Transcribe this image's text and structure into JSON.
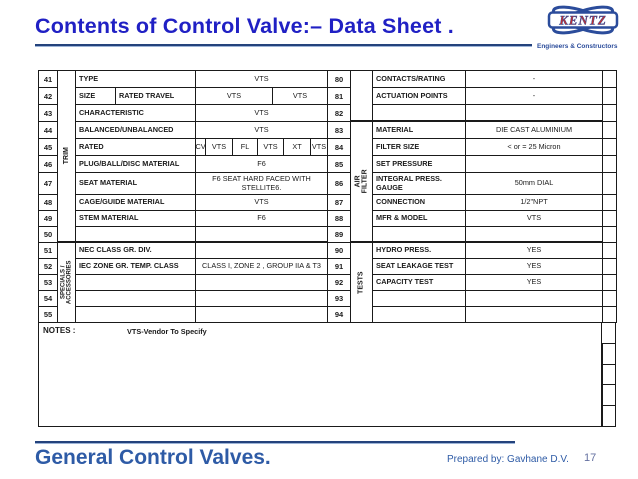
{
  "title": "Contents of Control Valve:– Data Sheet .",
  "logo": {
    "name": "KENTZ",
    "tagline": "Engineers & Constructors"
  },
  "colors": {
    "title_blue": "#2020c4",
    "rule_navy": "#24427c",
    "footer_blue": "#2e5ba6",
    "logo_blue": "#2b4c9b",
    "logo_red": "#c42f2f"
  },
  "left_table": {
    "sections": [
      {
        "label": "TRIM",
        "rows": "41-50"
      },
      {
        "label": "SPECIALS /\nACCESSORIES",
        "rows": "51-55"
      }
    ],
    "rows": [
      {
        "num": "41",
        "label": "TYPE",
        "value": "VTS"
      },
      {
        "num": "42",
        "labels": [
          "SIZE",
          "RATED TRAVEL"
        ],
        "values": [
          "VTS",
          "VTS"
        ]
      },
      {
        "num": "43",
        "label": "CHARACTERISTIC",
        "value": "VTS"
      },
      {
        "num": "44",
        "label": "BALANCED/UNBALANCED",
        "value": "VTS"
      },
      {
        "num": "45",
        "label": "RATED",
        "values": [
          "CV",
          "VTS",
          "FL",
          "VTS",
          "XT",
          "VTS"
        ]
      },
      {
        "num": "46",
        "label": "PLUG/BALL/DISC MATERIAL",
        "value": "F6"
      },
      {
        "num": "47",
        "label": "SEAT MATERIAL",
        "value": "F6 SEAT HARD FACED WITH\nSTELLITE6."
      },
      {
        "num": "48",
        "label": "CAGE/GUIDE MATERIAL",
        "value": "VTS"
      },
      {
        "num": "49",
        "label": "STEM MATERIAL",
        "value": "F6"
      },
      {
        "num": "50",
        "label": "",
        "value": ""
      },
      {
        "num": "51",
        "label": "NEC CLASS GR. DIV.",
        "value": ""
      },
      {
        "num": "52",
        "label": "IEC ZONE  GR. TEMP. CLASS",
        "value": "CLASS I, ZONE 2 , GROUP IIA & T3"
      },
      {
        "num": "53",
        "label": "",
        "value": ""
      },
      {
        "num": "54",
        "label": "",
        "value": ""
      },
      {
        "num": "55",
        "label": "",
        "value": ""
      }
    ]
  },
  "right_table": {
    "sections": [
      {
        "label": "",
        "rows": "80-82"
      },
      {
        "label": "AIR FILTER",
        "rows": "83-89"
      },
      {
        "label": "TESTS",
        "rows": "90-94"
      }
    ],
    "rows": [
      {
        "num": "80",
        "label": "CONTACTS/RATING",
        "value": "-"
      },
      {
        "num": "81",
        "label": "ACTUATION POINTS",
        "value": "-"
      },
      {
        "num": "82",
        "label": "",
        "value": ""
      },
      {
        "num": "83",
        "label": "MATERIAL",
        "value": "DIE CAST ALUMINIUM"
      },
      {
        "num": "84",
        "label": "FILTER SIZE",
        "value": "< or = 25 Micron"
      },
      {
        "num": "85",
        "label": "SET PRESSURE",
        "value": ""
      },
      {
        "num": "86",
        "label": "INTEGRAL PRESS.\nGAUGE",
        "value": "50mm DIAL"
      },
      {
        "num": "87",
        "label": "CONNECTION",
        "value": "1/2\"NPT"
      },
      {
        "num": "88",
        "label": "MFR & MODEL",
        "value": "VTS"
      },
      {
        "num": "89",
        "label": "",
        "value": ""
      },
      {
        "num": "90",
        "label": "HYDRO PRESS.",
        "value": "YES"
      },
      {
        "num": "91",
        "label": "SEAT LEAKAGE TEST",
        "value": "YES"
      },
      {
        "num": "92",
        "label": "CAPACITY TEST",
        "value": "YES"
      },
      {
        "num": "93",
        "label": "",
        "value": ""
      },
      {
        "num": "94",
        "label": "",
        "value": ""
      }
    ]
  },
  "notes": {
    "label": "NOTES :",
    "text": "VTS-Vendor To Specify"
  },
  "footer": {
    "title": "General Control Valves.",
    "prepared_by": "Prepared by: Gavhane D.V.",
    "page": "17"
  }
}
